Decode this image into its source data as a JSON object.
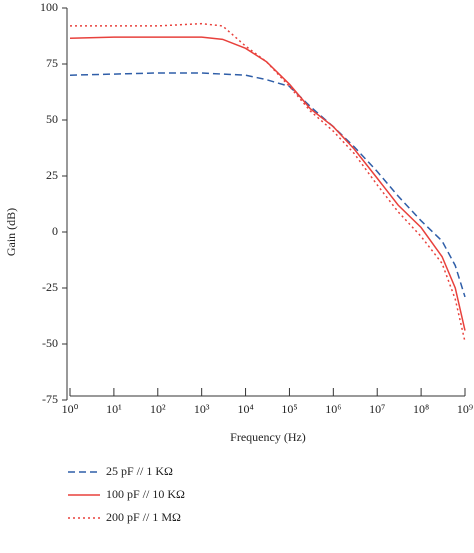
{
  "chart_data": {
    "type": "line",
    "xlabel": "Frequency (Hz)",
    "ylabel": "Gain (dB)",
    "xscale": "log",
    "x": [
      1,
      10,
      100,
      1000,
      3000,
      10000,
      30000,
      100000,
      300000,
      1000000,
      3000000,
      10000000,
      30000000,
      100000000,
      300000000,
      600000000,
      1000000000
    ],
    "series": [
      {
        "name": "25 pF // 1 KΩ",
        "color": "#2f5ea8",
        "linestyle": "dashed",
        "values": [
          70,
          70.5,
          71,
          71,
          70.5,
          70,
          68,
          65,
          56,
          47,
          38,
          27,
          16,
          5,
          -4,
          -15,
          -29
        ]
      },
      {
        "name": "100 pF // 10 KΩ",
        "color": "#e8413c",
        "linestyle": "solid",
        "values": [
          86.5,
          87,
          87,
          87,
          86,
          82,
          76,
          66,
          55,
          47,
          37,
          24,
          12,
          2,
          -11,
          -25,
          -44
        ]
      },
      {
        "name": "200 pF // 1 MΩ",
        "color": "#e8413c",
        "linestyle": "dotted",
        "values": [
          92,
          92,
          92,
          93,
          92,
          83,
          76,
          65,
          54,
          45,
          35,
          21,
          9,
          -2,
          -14,
          -30,
          -49
        ]
      }
    ],
    "xlim": [
      1,
      1000000000
    ],
    "xticks": [
      {
        "value": 1,
        "label": "10⁰"
      },
      {
        "value": 10,
        "label": "10¹"
      },
      {
        "value": 100,
        "label": "10²"
      },
      {
        "value": 1000,
        "label": "10³"
      },
      {
        "value": 10000,
        "label": "10⁴"
      },
      {
        "value": 100000,
        "label": "10⁵"
      },
      {
        "value": 1000000,
        "label": "10⁶"
      },
      {
        "value": 10000000,
        "label": "10⁷"
      },
      {
        "value": 100000000,
        "label": "10⁸"
      },
      {
        "value": 1000000000,
        "label": "10⁹"
      }
    ],
    "ylim": [
      -75,
      100
    ],
    "yticks": [
      -75,
      -50,
      -25,
      0,
      25,
      50,
      75,
      100
    ]
  }
}
